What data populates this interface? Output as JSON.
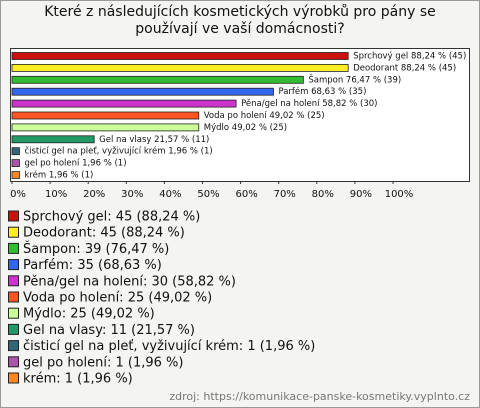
{
  "chart_data": {
    "type": "bar",
    "orientation": "horizontal",
    "title": "Které z následujících kosmetických výrobků pro pány se používají ve vaší domácnosti?",
    "categories": [
      "Sprchový gel",
      "Deodorant",
      "Šampon",
      "Parfém",
      "Pěna/gel na holení",
      "Voda po holení",
      "Mýdlo",
      "Gel na vlasy",
      "čisticí gel na pleť, vyživující krém",
      "gel po holení",
      "krém"
    ],
    "values": [
      88.24,
      88.24,
      76.47,
      68.63,
      58.82,
      49.02,
      49.02,
      21.57,
      1.96,
      1.96,
      1.96
    ],
    "value_labels": [
      "Sprchový gel 88,24 % (45)",
      "Deodorant 88,24 % (45)",
      "Šampon 76,47 % (39)",
      "Parfém 68,63 % (35)",
      "Pěna/gel na holení 58,82 % (30)",
      "Voda po holení 49,02 % (25)",
      "Mýdlo 49,02 % (25)",
      "Gel na vlasy 21,57 % (11)",
      "čisticí gel na pleť, vyživující krém 1,96 % (1)",
      "gel po holení 1,96 % (1)",
      "krém 1,96 % (1)"
    ],
    "colors": [
      "#cc1111",
      "#ffee22",
      "#33bb33",
      "#3366ee",
      "#cc33cc",
      "#ff5522",
      "#ccff99",
      "#229966",
      "#336677",
      "#aa55aa",
      "#ff8822"
    ],
    "legend": [
      "Sprchový gel: 45 (88,24 %)",
      "Deodorant: 45 (88,24 %)",
      "Šampon: 39 (76,47 %)",
      "Parfém: 35 (68,63 %)",
      "Pěna/gel na holení: 30 (58,82 %)",
      "Voda po holení: 25 (49,02 %)",
      "Mýdlo: 25 (49,02 %)",
      "Gel na vlasy: 11 (21,57 %)",
      "čisticí gel na pleť, vyživující krém: 1 (1,96 %)",
      "gel po holení: 1 (1,96 %)",
      "krém: 1 (1,96 %)"
    ],
    "xlim": [
      0,
      100
    ],
    "xticks": [
      {
        "value": 0,
        "label": "0%"
      },
      {
        "value": 10,
        "label": "10%"
      },
      {
        "value": 20,
        "label": "20%"
      },
      {
        "value": 30,
        "label": "30%"
      },
      {
        "value": 40,
        "label": "40%"
      },
      {
        "value": 50,
        "label": "50%"
      },
      {
        "value": 60,
        "label": "60%"
      },
      {
        "value": 70,
        "label": "70%"
      },
      {
        "value": 80,
        "label": "80%"
      },
      {
        "value": 90,
        "label": "90%"
      },
      {
        "value": 100,
        "label": "100%"
      }
    ],
    "source": "zdroj: https://komunikace-panske-kosmetiky.vyplnto.cz"
  }
}
